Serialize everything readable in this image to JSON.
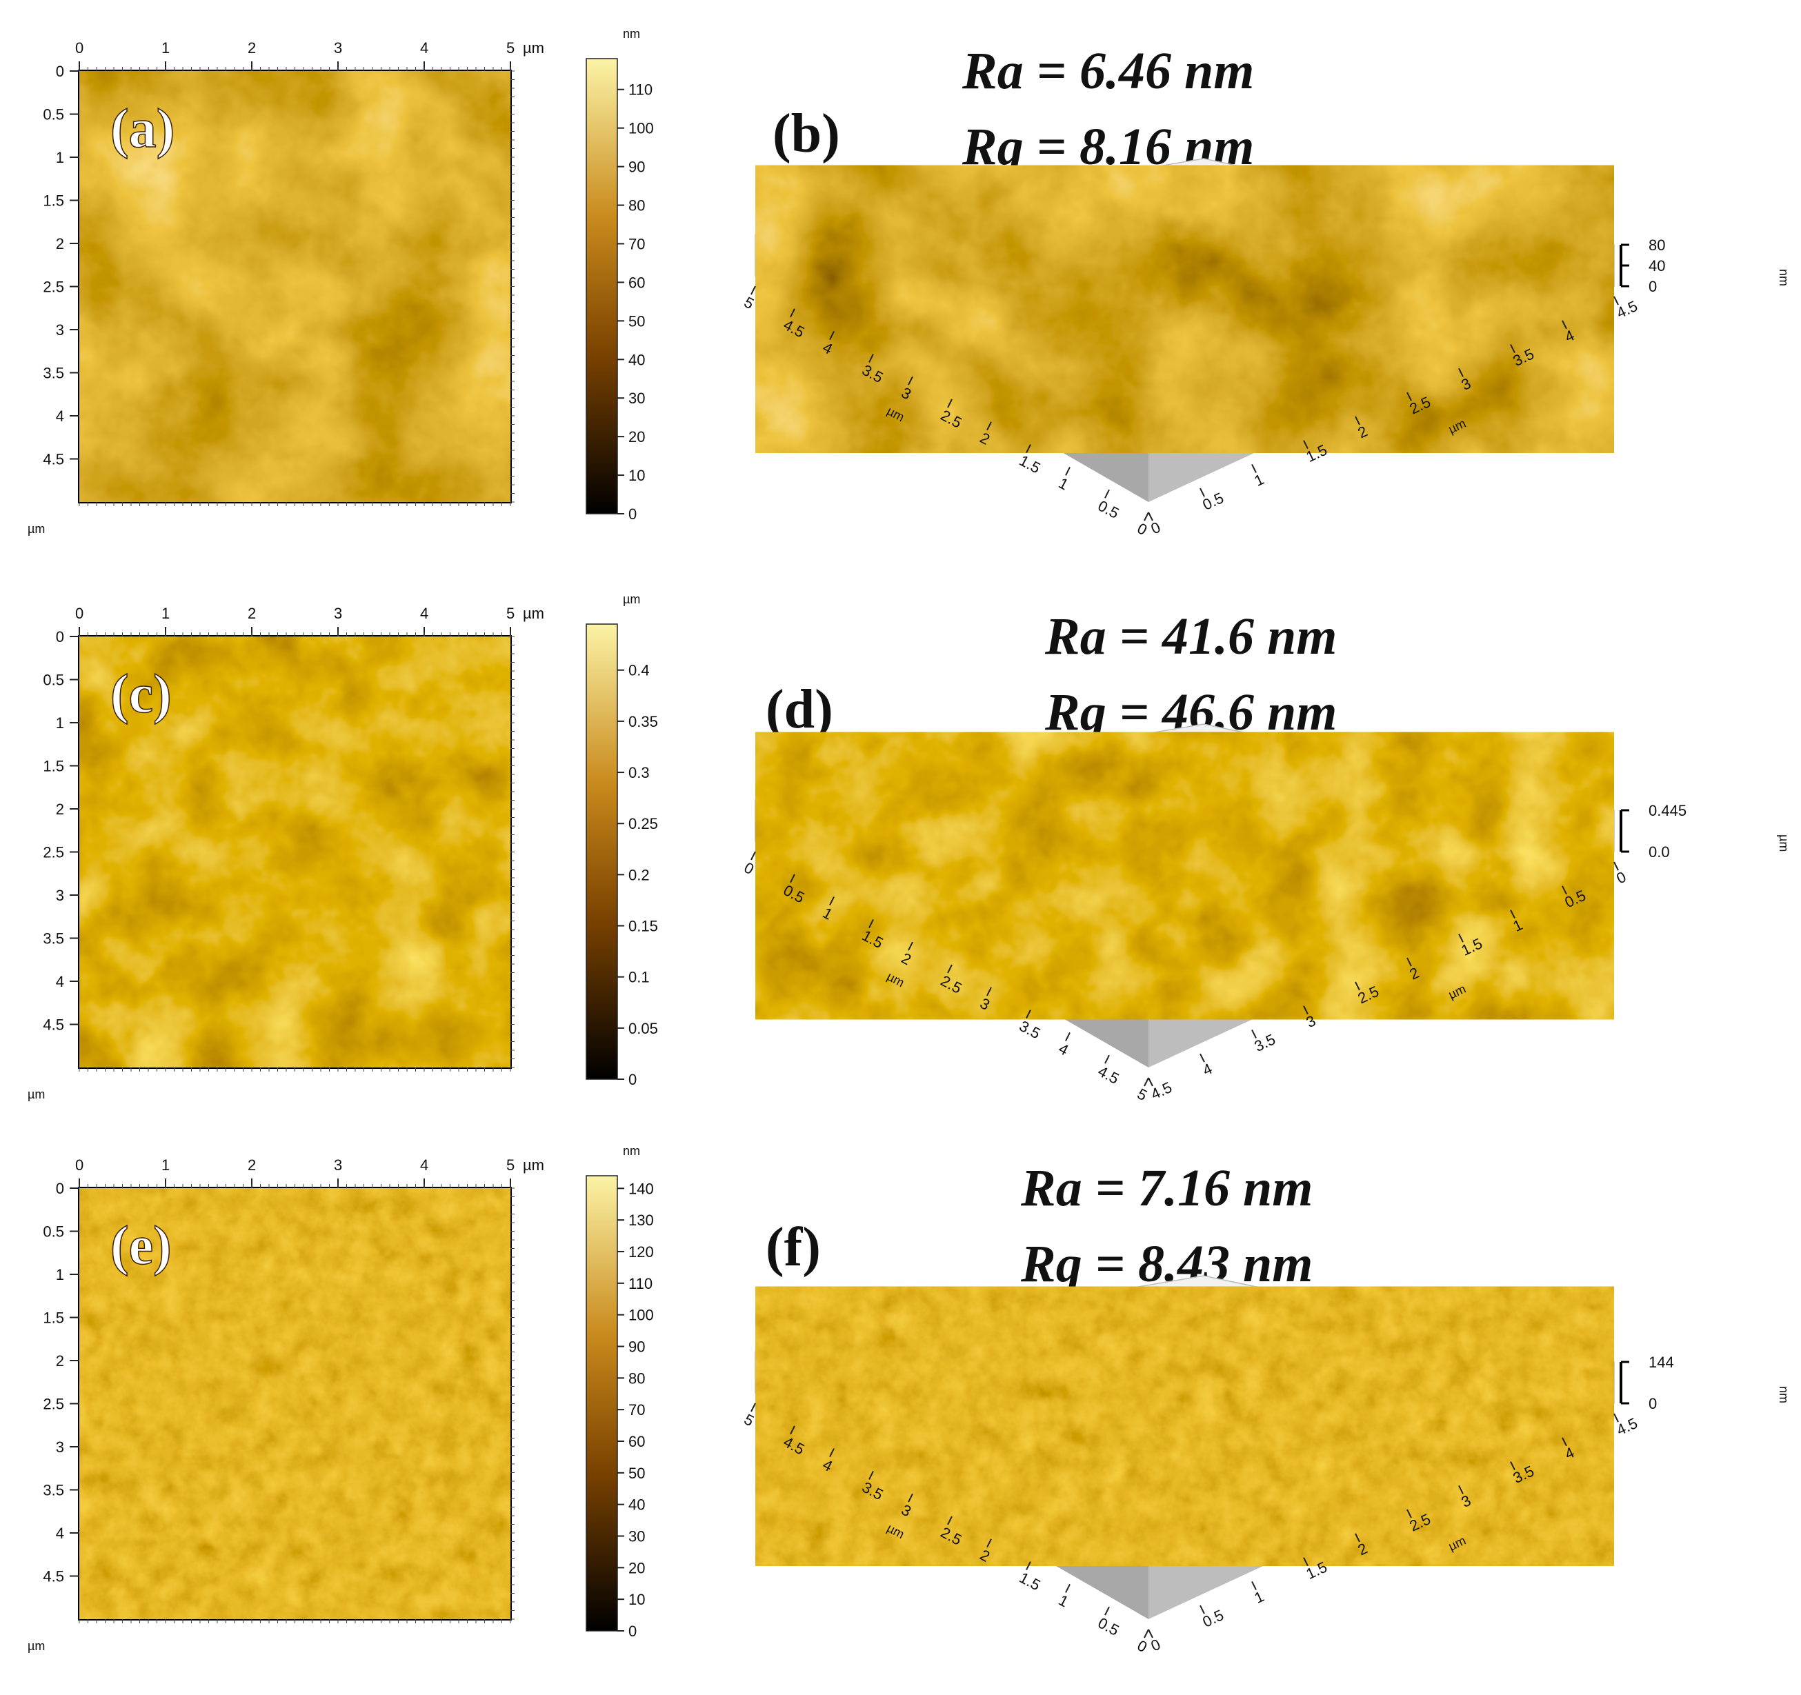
{
  "rows": [
    {
      "left": {
        "label": "(a)",
        "x_unit_top": "µm",
        "y_unit_bottom": "µm",
        "x_ticks": [
          "0",
          "1",
          "2",
          "3",
          "4",
          "5"
        ],
        "y_ticks": [
          "0",
          "0.5",
          "1",
          "1.5",
          "2",
          "2.5",
          "3",
          "3.5",
          "4",
          "4.5"
        ],
        "colorbar": {
          "unit": "nm",
          "ticks": [
            "110",
            "100",
            "90",
            "80",
            "70",
            "60",
            "50",
            "40",
            "30",
            "20",
            "10",
            "0"
          ],
          "max": 118
        }
      },
      "right": {
        "label": "(b)",
        "ra": "Ra = 6.46 nm",
        "rq": "Rq = 8.16 nm",
        "z_ticks": [
          "80",
          "40",
          "0"
        ],
        "z_unit": "nm",
        "left_axis_ticks": [
          "5",
          "4.5",
          "4",
          "3.5",
          "3",
          "2.5",
          "2",
          "1.5",
          "1",
          "0.5",
          "0"
        ],
        "right_axis_ticks": [
          "0",
          "0.5",
          "1",
          "1.5",
          "2",
          "2.5",
          "3",
          "3.5",
          "4",
          "4.5"
        ],
        "axis_unit": "µm"
      }
    },
    {
      "left": {
        "label": "(c)",
        "x_unit_top": "µm",
        "y_unit_bottom": "µm",
        "x_ticks": [
          "0",
          "1",
          "2",
          "3",
          "4",
          "5"
        ],
        "y_ticks": [
          "0",
          "0.5",
          "1",
          "1.5",
          "2",
          "2.5",
          "3",
          "3.5",
          "4",
          "4.5"
        ],
        "colorbar": {
          "unit": "µm",
          "ticks": [
            "0.4",
            "0.35",
            "0.3",
            "0.25",
            "0.2",
            "0.15",
            "0.1",
            "0.05",
            "0"
          ],
          "max": 0.445
        }
      },
      "right": {
        "label": "(d)",
        "ra": "Ra = 41.6 nm",
        "rq": "Rq = 46.6 nm",
        "z_ticks": [
          "0.445",
          "0.0"
        ],
        "z_unit": "µm",
        "left_axis_ticks": [
          "0",
          "0.5",
          "1",
          "1.5",
          "2",
          "2.5",
          "3",
          "3.5",
          "4",
          "4.5",
          "5"
        ],
        "right_axis_ticks": [
          "4.5",
          "4",
          "3.5",
          "3",
          "2.5",
          "2",
          "1.5",
          "1",
          "0.5",
          "0"
        ],
        "axis_unit": "µm"
      }
    },
    {
      "left": {
        "label": "(e)",
        "x_unit_top": "µm",
        "y_unit_bottom": "µm",
        "x_ticks": [
          "0",
          "1",
          "2",
          "3",
          "4",
          "5"
        ],
        "y_ticks": [
          "0",
          "0.5",
          "1",
          "1.5",
          "2",
          "2.5",
          "3",
          "3.5",
          "4",
          "4.5"
        ],
        "colorbar": {
          "unit": "nm",
          "ticks": [
            "140",
            "130",
            "120",
            "110",
            "100",
            "90",
            "80",
            "70",
            "60",
            "50",
            "40",
            "30",
            "20",
            "10",
            "0"
          ],
          "max": 144
        }
      },
      "right": {
        "label": "(f)",
        "ra": "Ra = 7.16 nm",
        "rq": "Rq = 8.43 nm",
        "z_ticks": [
          "144",
          "0"
        ],
        "z_unit": "nm",
        "left_axis_ticks": [
          "5",
          "4.5",
          "4",
          "3.5",
          "3",
          "2.5",
          "2",
          "1.5",
          "1",
          "0.5",
          "0"
        ],
        "right_axis_ticks": [
          "0",
          "0.5",
          "1",
          "1.5",
          "2",
          "2.5",
          "3",
          "3.5",
          "4",
          "4.5"
        ],
        "axis_unit": "µm"
      }
    }
  ],
  "colors": {
    "afm_dark": "#1a0d00",
    "afm_mid": "#8a5000",
    "afm_light": "#f5e08a",
    "wall": "#a8a8a8"
  }
}
